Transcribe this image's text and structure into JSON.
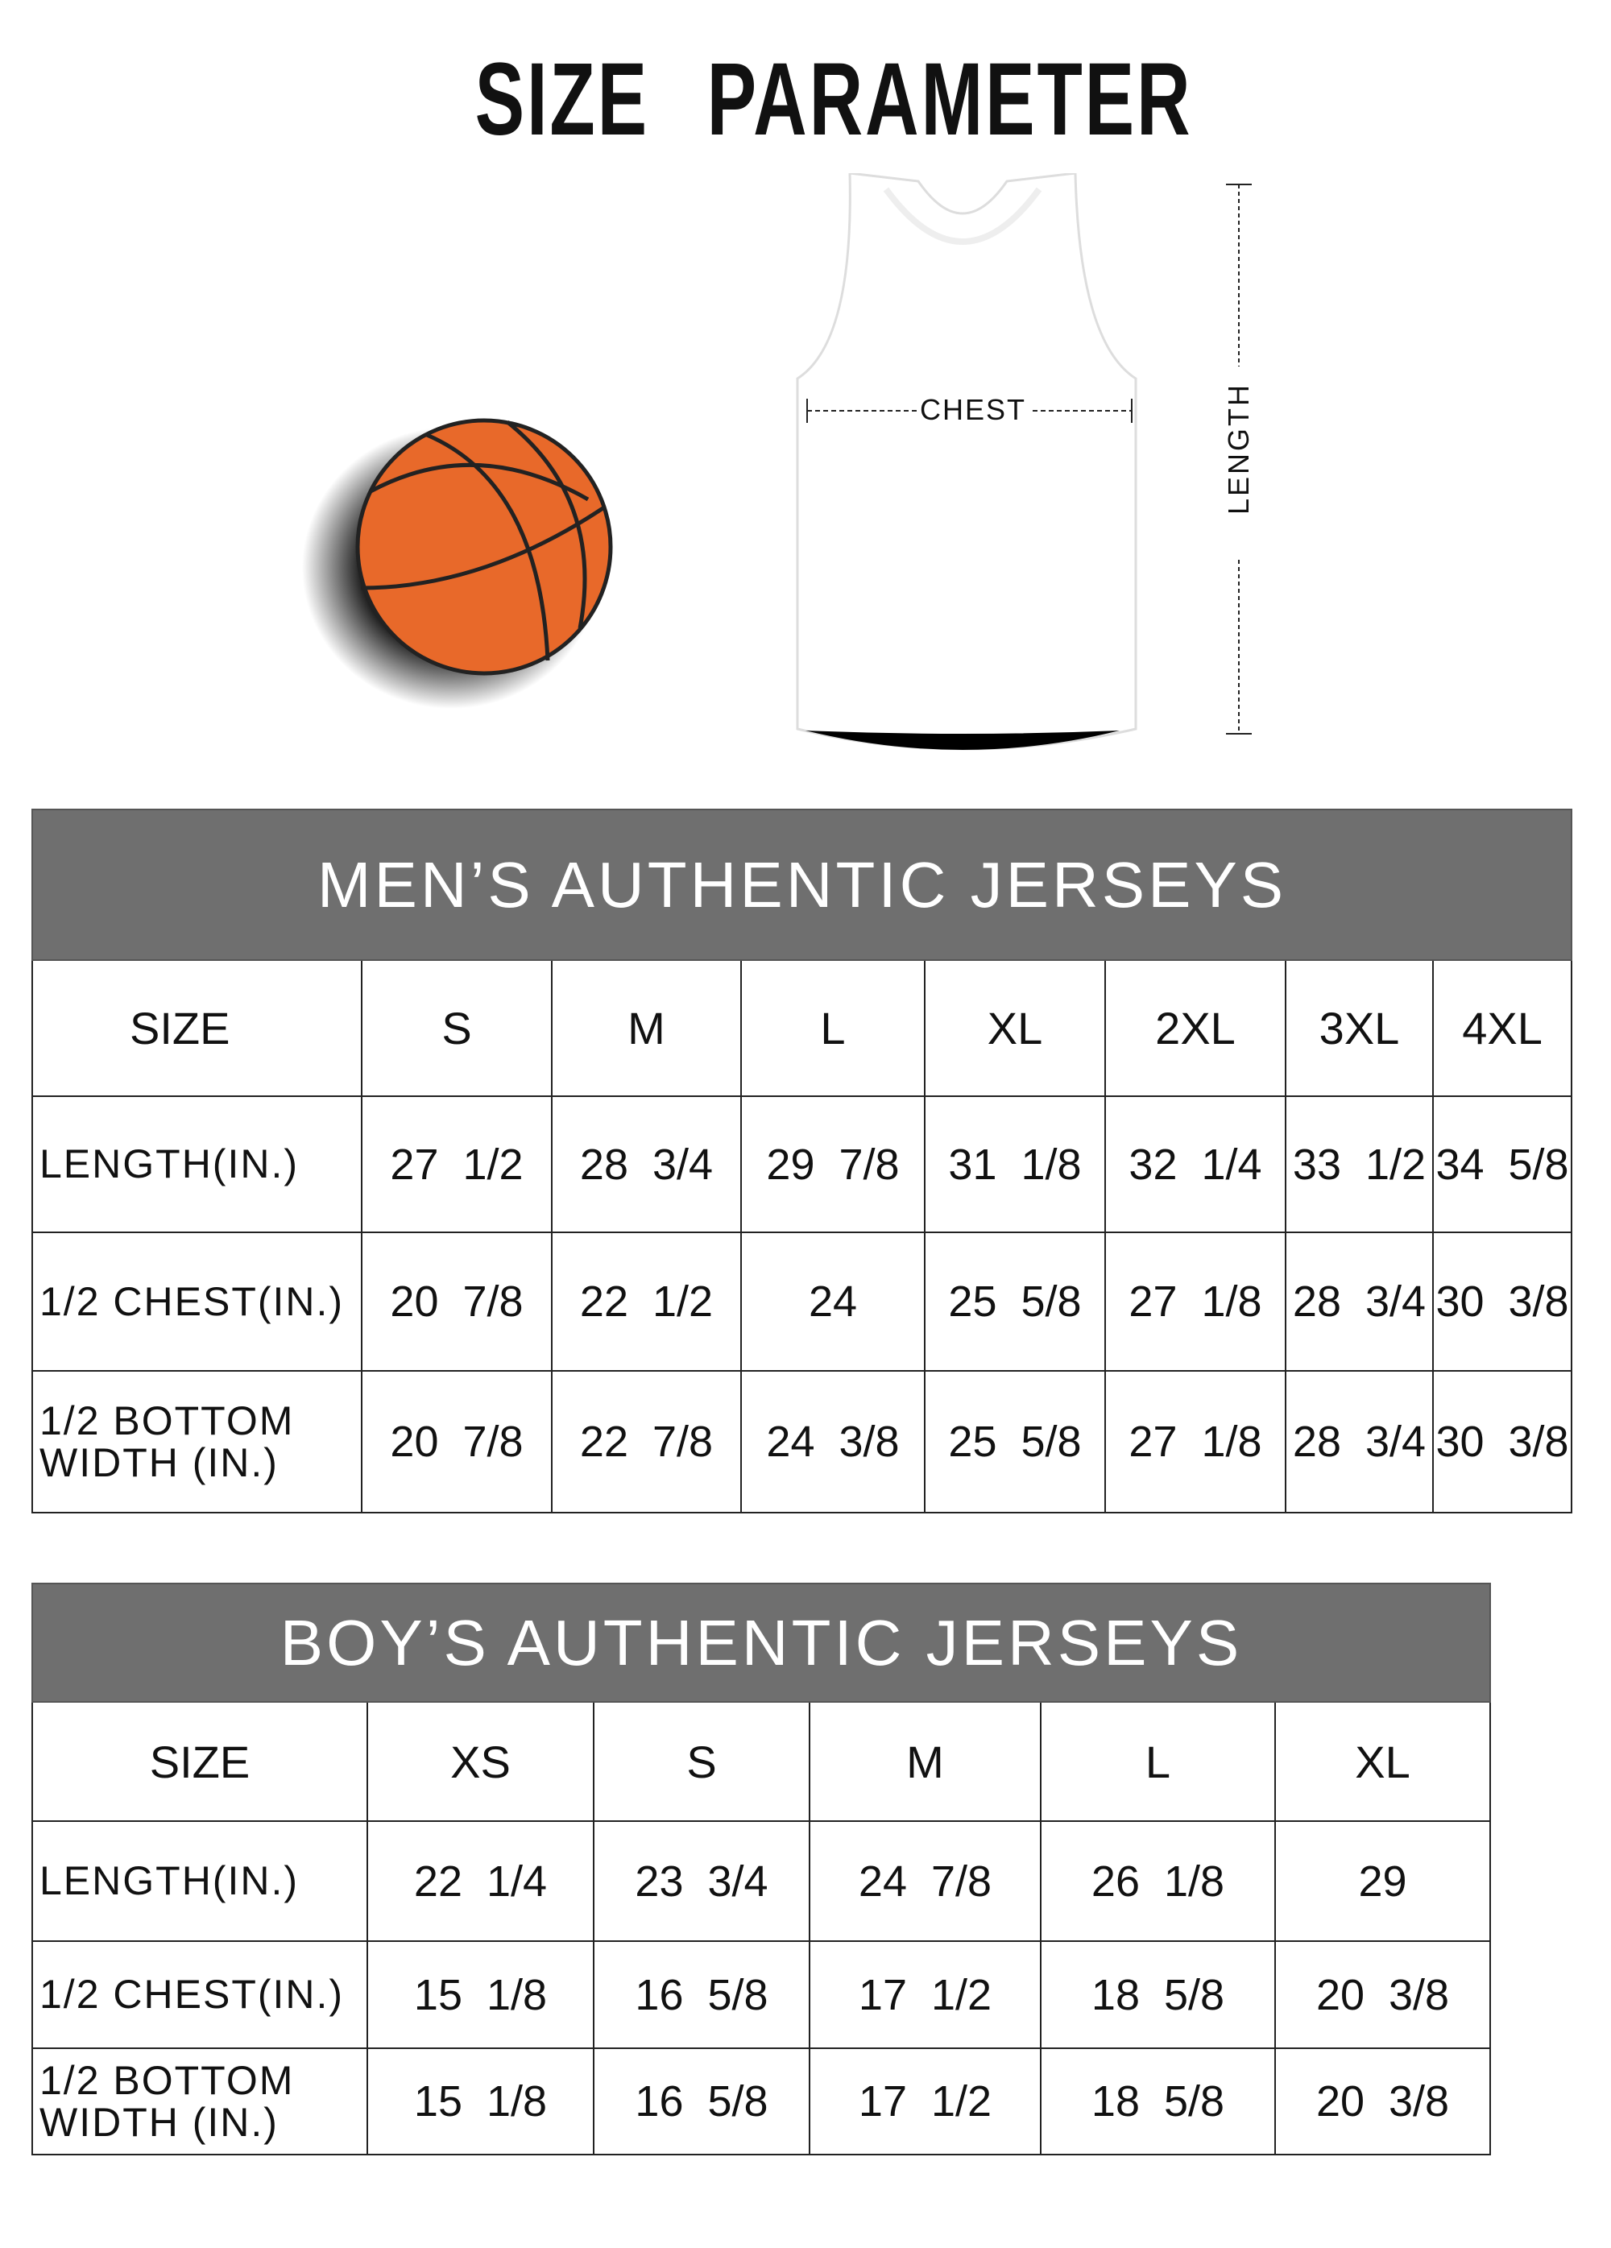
{
  "title": "SIZE PARAMETER",
  "diagram": {
    "chest_label": "CHEST",
    "length_label": "LENGTH",
    "ball_color": "#e8692a",
    "header_color": "#6f6f6f"
  },
  "mens": {
    "heading": "MEN’S AUTHENTIC JERSEYS",
    "size_label": "SIZE",
    "sizes": [
      "S",
      "M",
      "L",
      "XL",
      "2XL",
      "3XL",
      "4XL"
    ],
    "rows": [
      {
        "label": "LENGTH(IN.)",
        "values": [
          "27  1/2",
          "28  3/4",
          "29  7/8",
          "31  1/8",
          "32  1/4",
          "33  1/2",
          "34  5/8"
        ]
      },
      {
        "label": "1/2 CHEST(IN.)",
        "values": [
          "20  7/8",
          "22  1/2",
          "24",
          "25  5/8",
          "27  1/8",
          "28  3/4",
          "30  3/8"
        ]
      },
      {
        "label": "1/2 BOTTOM WIDTH  (IN.)",
        "values": [
          "20  7/8",
          "22  7/8",
          "24  3/8",
          "25  5/8",
          "27  1/8",
          "28  3/4",
          "30  3/8"
        ]
      }
    ]
  },
  "boys": {
    "heading": "BOY’S AUTHENTIC JERSEYS",
    "size_label": "SIZE",
    "sizes": [
      "XS",
      "S",
      "M",
      "L",
      "XL"
    ],
    "rows": [
      {
        "label": "LENGTH(IN.)",
        "values": [
          "22  1/4",
          "23  3/4",
          "24  7/8",
          "26  1/8",
          "29"
        ]
      },
      {
        "label": "1/2 CHEST(IN.)",
        "values": [
          "15  1/8",
          "16  5/8",
          "17  1/2",
          "18  5/8",
          "20  3/8"
        ]
      },
      {
        "label": "1/2 BOTTOM WIDTH  (IN.)",
        "values": [
          "15  1/8",
          "16  5/8",
          "17  1/2",
          "18  5/8",
          "20  3/8"
        ]
      }
    ]
  }
}
